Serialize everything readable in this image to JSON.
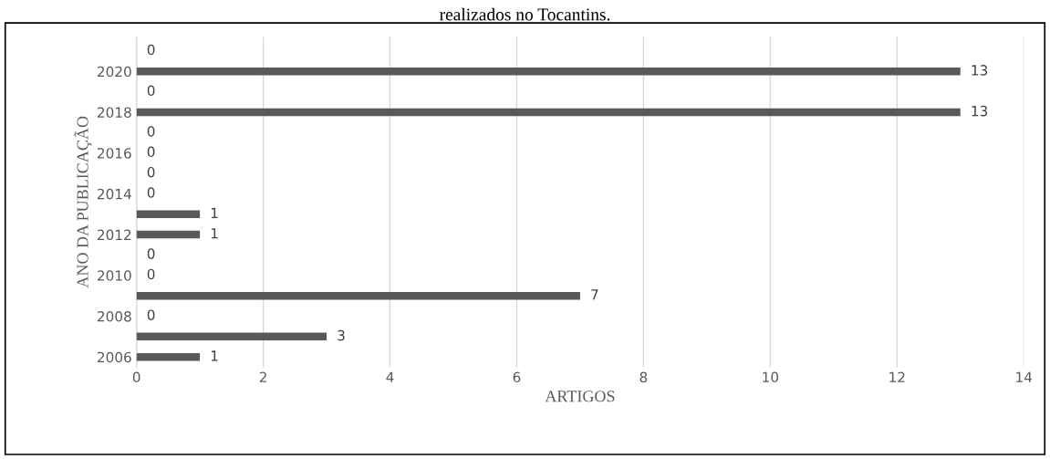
{
  "chart_data": {
    "type": "bar",
    "orientation": "horizontal",
    "title": "realizados no Tocantins.",
    "xlabel": "ARTIGOS",
    "ylabel": "ANO DA PUBLICAÇÃO",
    "categories": [
      null,
      "2020",
      null,
      "2018",
      null,
      "2016",
      null,
      "2014",
      null,
      "2012",
      null,
      "2010",
      null,
      "2008",
      null,
      "2006"
    ],
    "values": [
      0,
      13,
      0,
      13,
      0,
      0,
      0,
      0,
      1,
      1,
      0,
      0,
      7,
      0,
      3,
      1
    ],
    "color": "#595959",
    "xlim": [
      0,
      14
    ],
    "xticks": [
      0,
      2,
      4,
      6,
      8,
      10,
      12,
      14
    ],
    "grid": "x",
    "data_labels": true
  }
}
